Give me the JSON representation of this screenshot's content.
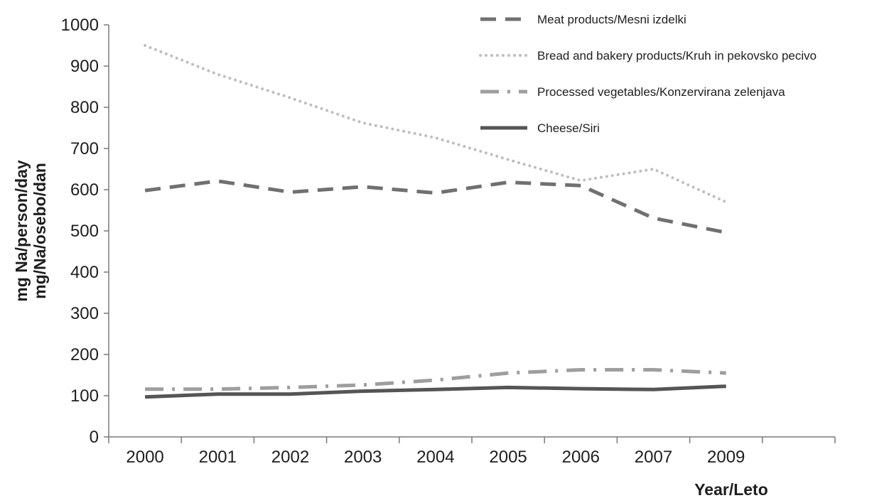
{
  "chart_data": {
    "type": "line",
    "title": "",
    "ylabel_line1": "mg Na/person/day",
    "ylabel_line2": "mg/Na/osebo/dan",
    "xlabel": "Year/Leto",
    "ylim": [
      0,
      1000
    ],
    "y_ticks": [
      "0",
      "100",
      "200",
      "300",
      "400",
      "500",
      "600",
      "700",
      "800",
      "900",
      "1000"
    ],
    "categories": [
      "2000",
      "2001",
      "2002",
      "2003",
      "2004",
      "2005",
      "2006",
      "2007",
      "2009"
    ],
    "grid": false,
    "legend_position": "top-right",
    "series": [
      {
        "name": "Meat products/Mesni izdelki",
        "color": "#707070",
        "style": "dashed",
        "values": [
          598,
          621,
          594,
          607,
          592,
          618,
          610,
          531,
          496
        ]
      },
      {
        "name": "Bread and bakery products/Kruh in pekovsko pecivo",
        "color": "#bdbdbd",
        "style": "dotted",
        "values": [
          950,
          880,
          823,
          762,
          726,
          673,
          622,
          650,
          570
        ]
      },
      {
        "name": "Processed vegetables/Konzervirana zelenjava",
        "color": "#9e9e9e",
        "style": "dash-dot",
        "values": [
          116,
          116,
          120,
          126,
          138,
          155,
          163,
          163,
          155
        ]
      },
      {
        "name": "Cheese/Siri",
        "color": "#555555",
        "style": "solid",
        "values": [
          97,
          104,
          104,
          111,
          115,
          120,
          117,
          115,
          123
        ]
      }
    ]
  }
}
